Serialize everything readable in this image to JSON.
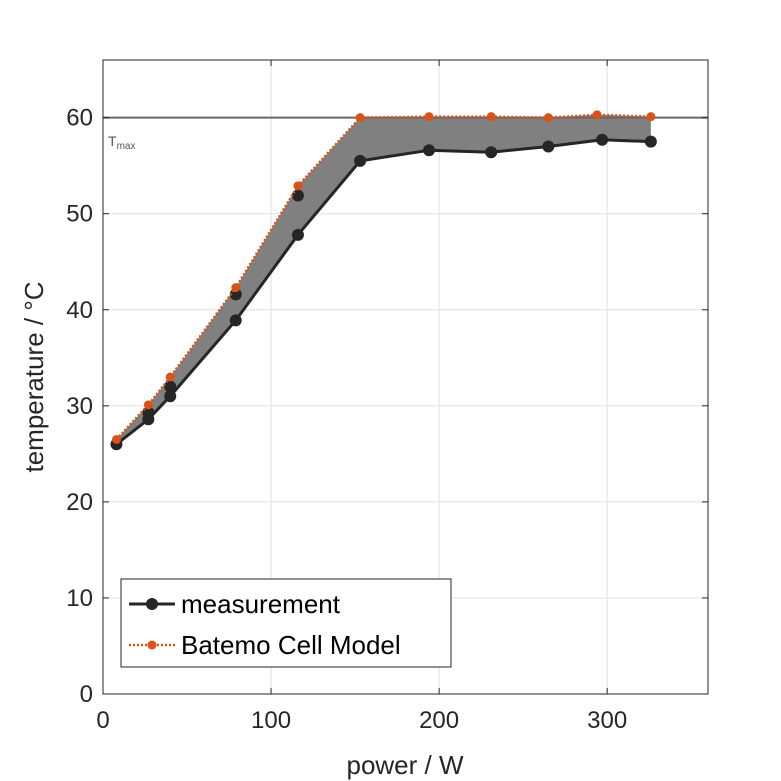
{
  "chart_data": {
    "type": "line",
    "xlabel": "power / W",
    "ylabel": "temperature / °C",
    "xlim": [
      0,
      360
    ],
    "ylim": [
      0,
      66
    ],
    "xticks": [
      0,
      100,
      200,
      300
    ],
    "yticks": [
      0,
      10,
      20,
      30,
      40,
      50,
      60
    ],
    "grid": true,
    "legend_position": "bottom-left",
    "tmax": {
      "value": 60,
      "label": "T",
      "subscript": "max",
      "color": "#666666"
    },
    "band_color": "#808080",
    "series": [
      {
        "name": "measurement",
        "color": "#262626",
        "style": "solid",
        "points": [
          [
            8,
            26.0
          ],
          [
            27,
            28.6
          ],
          [
            40,
            31.0
          ],
          [
            79,
            38.9
          ],
          [
            116,
            47.8
          ],
          [
            153,
            55.5
          ],
          [
            194,
            56.6
          ],
          [
            231,
            56.4
          ],
          [
            265,
            57.0
          ],
          [
            297,
            57.7
          ],
          [
            326,
            57.5
          ]
        ],
        "points_upper": [
          [
            27,
            29.3
          ],
          [
            40,
            32.0
          ],
          [
            79,
            41.6
          ],
          [
            116,
            51.9
          ]
        ]
      },
      {
        "name": "Batemo Cell Model",
        "color": "#D95319",
        "style": "dotted",
        "points": [
          [
            8,
            26.5
          ],
          [
            27,
            30.1
          ],
          [
            40,
            33.0
          ],
          [
            79,
            42.3
          ],
          [
            116,
            52.9
          ],
          [
            153,
            60.0
          ],
          [
            194,
            60.1
          ],
          [
            231,
            60.1
          ],
          [
            265,
            60.0
          ],
          [
            294,
            60.3
          ],
          [
            326,
            60.1
          ]
        ]
      }
    ]
  }
}
